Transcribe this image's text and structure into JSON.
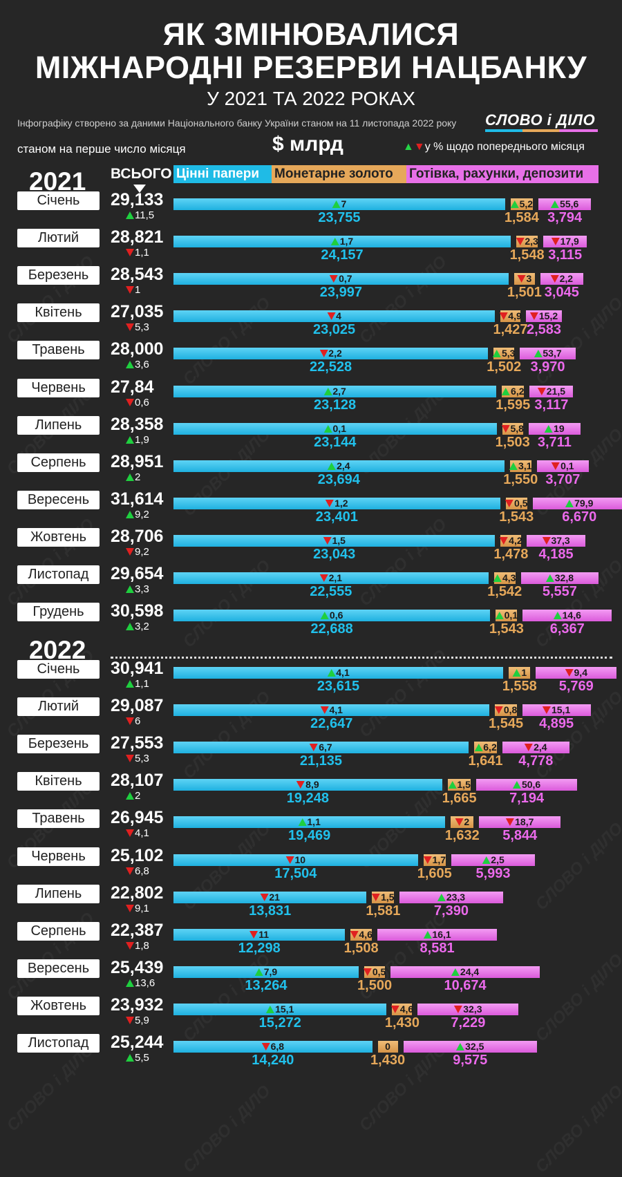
{
  "header": {
    "title_line1": "ЯК ЗМІНЮВАЛИСЯ",
    "title_line2": "МІЖНАРОДНІ РЕЗЕРВИ НАЦБАНКУ",
    "subtitle": "У 2021 ТА 2022 РОКАХ",
    "source_note": "Інфографіку створено за даними Національного банку України станом на 11 листопада 2022 року",
    "logo_text": "СЛОВО і ДІЛО",
    "as_of_note": "станом на перше число місяця",
    "unit": "$ млрд",
    "change_legend": "у % щодо попереднього місяця",
    "total_header": "ВСЬОГО"
  },
  "colors": {
    "background": "#262626",
    "securities": "#1fbbe6",
    "gold": "#e6a85a",
    "cash": "#e870e8",
    "up": "#1fcf3f",
    "down": "#e02020"
  },
  "chart_data": {
    "type": "bar",
    "orientation": "horizontal",
    "stacked": false,
    "series": [
      {
        "name": "Цінні папери"
      },
      {
        "name": "Монетарне золото"
      },
      {
        "name": "Готівка, рахунки, депозити"
      }
    ],
    "groups": [
      {
        "year": "2021",
        "rows": [
          {
            "month": "Січень",
            "total": "29,133",
            "total_dir": "up",
            "total_chg": "11,5",
            "sec": 23.755,
            "sec_label": "23,755",
            "sec_dir": "up",
            "sec_chg": "7",
            "gold": 1.584,
            "gold_label": "1,584",
            "gold_dir": "up",
            "gold_chg": "5,2",
            "cash": 3.794,
            "cash_label": "3,794",
            "cash_dir": "up",
            "cash_chg": "55,6"
          },
          {
            "month": "Лютий",
            "total": "28,821",
            "total_dir": "down",
            "total_chg": "1,1",
            "sec": 24.157,
            "sec_label": "24,157",
            "sec_dir": "up",
            "sec_chg": "1,7",
            "gold": 1.548,
            "gold_label": "1,548",
            "gold_dir": "down",
            "gold_chg": "2,3",
            "cash": 3.115,
            "cash_label": "3,115",
            "cash_dir": "down",
            "cash_chg": "17,9"
          },
          {
            "month": "Березень",
            "total": "28,543",
            "total_dir": "down",
            "total_chg": "1",
            "sec": 23.997,
            "sec_label": "23,997",
            "sec_dir": "down",
            "sec_chg": "0,7",
            "gold": 1.501,
            "gold_label": "1,501",
            "gold_dir": "down",
            "gold_chg": "3",
            "cash": 3.045,
            "cash_label": "3,045",
            "cash_dir": "down",
            "cash_chg": "2,2"
          },
          {
            "month": "Квітень",
            "total": "27,035",
            "total_dir": "down",
            "total_chg": "5,3",
            "sec": 23.025,
            "sec_label": "23,025",
            "sec_dir": "down",
            "sec_chg": "4",
            "gold": 1.427,
            "gold_label": "1,427",
            "gold_dir": "down",
            "gold_chg": "4,9",
            "cash": 2.583,
            "cash_label": "2,583",
            "cash_dir": "down",
            "cash_chg": "15,2"
          },
          {
            "month": "Травень",
            "total": "28,000",
            "total_dir": "up",
            "total_chg": "3,6",
            "sec": 22.528,
            "sec_label": "22,528",
            "sec_dir": "down",
            "sec_chg": "2,2",
            "gold": 1.502,
            "gold_label": "1,502",
            "gold_dir": "up",
            "gold_chg": "5,3",
            "cash": 3.97,
            "cash_label": "3,970",
            "cash_dir": "up",
            "cash_chg": "53,7"
          },
          {
            "month": "Червень",
            "total": "27,84",
            "total_dir": "down",
            "total_chg": "0,6",
            "sec": 23.128,
            "sec_label": "23,128",
            "sec_dir": "up",
            "sec_chg": "2,7",
            "gold": 1.595,
            "gold_label": "1,595",
            "gold_dir": "up",
            "gold_chg": "6,2",
            "cash": 3.117,
            "cash_label": "3,117",
            "cash_dir": "down",
            "cash_chg": "21,5"
          },
          {
            "month": "Липень",
            "total": "28,358",
            "total_dir": "up",
            "total_chg": "1,9",
            "sec": 23.144,
            "sec_label": "23,144",
            "sec_dir": "up",
            "sec_chg": "0,1",
            "gold": 1.503,
            "gold_label": "1,503",
            "gold_dir": "down",
            "gold_chg": "5,8",
            "cash": 3.711,
            "cash_label": "3,711",
            "cash_dir": "up",
            "cash_chg": "19"
          },
          {
            "month": "Серпень",
            "total": "28,951",
            "total_dir": "up",
            "total_chg": "2",
            "sec": 23.694,
            "sec_label": "23,694",
            "sec_dir": "up",
            "sec_chg": "2,4",
            "gold": 1.55,
            "gold_label": "1,550",
            "gold_dir": "up",
            "gold_chg": "3,1",
            "cash": 3.707,
            "cash_label": "3,707",
            "cash_dir": "down",
            "cash_chg": "0,1"
          },
          {
            "month": "Вересень",
            "total": "31,614",
            "total_dir": "up",
            "total_chg": "9,2",
            "sec": 23.401,
            "sec_label": "23,401",
            "sec_dir": "down",
            "sec_chg": "1,2",
            "gold": 1.543,
            "gold_label": "1,543",
            "gold_dir": "down",
            "gold_chg": "0,5",
            "cash": 6.67,
            "cash_label": "6,670",
            "cash_dir": "up",
            "cash_chg": "79,9"
          },
          {
            "month": "Жовтень",
            "total": "28,706",
            "total_dir": "down",
            "total_chg": "9,2",
            "sec": 23.043,
            "sec_label": "23,043",
            "sec_dir": "down",
            "sec_chg": "1,5",
            "gold": 1.478,
            "gold_label": "1,478",
            "gold_dir": "down",
            "gold_chg": "4,2",
            "cash": 4.185,
            "cash_label": "4,185",
            "cash_dir": "down",
            "cash_chg": "37,3"
          },
          {
            "month": "Листопад",
            "total": "29,654",
            "total_dir": "up",
            "total_chg": "3,3",
            "sec": 22.555,
            "sec_label": "22,555",
            "sec_dir": "down",
            "sec_chg": "2,1",
            "gold": 1.542,
            "gold_label": "1,542",
            "gold_dir": "up",
            "gold_chg": "4,3",
            "cash": 5.557,
            "cash_label": "5,557",
            "cash_dir": "up",
            "cash_chg": "32,8"
          },
          {
            "month": "Грудень",
            "total": "30,598",
            "total_dir": "up",
            "total_chg": "3,2",
            "sec": 22.688,
            "sec_label": "22,688",
            "sec_dir": "up",
            "sec_chg": "0,6",
            "gold": 1.543,
            "gold_label": "1,543",
            "gold_dir": "up",
            "gold_chg": "0,1",
            "cash": 6.367,
            "cash_label": "6,367",
            "cash_dir": "up",
            "cash_chg": "14,6"
          }
        ]
      },
      {
        "year": "2022",
        "rows": [
          {
            "month": "Січень",
            "total": "30,941",
            "total_dir": "up",
            "total_chg": "1,1",
            "sec": 23.615,
            "sec_label": "23,615",
            "sec_dir": "up",
            "sec_chg": "4,1",
            "gold": 1.558,
            "gold_label": "1,558",
            "gold_dir": "up",
            "gold_chg": "1",
            "cash": 5.769,
            "cash_label": "5,769",
            "cash_dir": "down",
            "cash_chg": "9,4"
          },
          {
            "month": "Лютий",
            "total": "29,087",
            "total_dir": "down",
            "total_chg": "6",
            "sec": 22.647,
            "sec_label": "22,647",
            "sec_dir": "down",
            "sec_chg": "4,1",
            "gold": 1.545,
            "gold_label": "1,545",
            "gold_dir": "down",
            "gold_chg": "0,8",
            "cash": 4.895,
            "cash_label": "4,895",
            "cash_dir": "down",
            "cash_chg": "15,1"
          },
          {
            "month": "Березень",
            "total": "27,553",
            "total_dir": "down",
            "total_chg": "5,3",
            "sec": 21.135,
            "sec_label": "21,135",
            "sec_dir": "down",
            "sec_chg": "6,7",
            "gold": 1.641,
            "gold_label": "1,641",
            "gold_dir": "up",
            "gold_chg": "6,2",
            "cash": 4.778,
            "cash_label": "4,778",
            "cash_dir": "down",
            "cash_chg": "2,4"
          },
          {
            "month": "Квітень",
            "total": "28,107",
            "total_dir": "up",
            "total_chg": "2",
            "sec": 19.248,
            "sec_label": "19,248",
            "sec_dir": "down",
            "sec_chg": "8,9",
            "gold": 1.665,
            "gold_label": "1,665",
            "gold_dir": "up",
            "gold_chg": "1,5",
            "cash": 7.194,
            "cash_label": "7,194",
            "cash_dir": "up",
            "cash_chg": "50,6"
          },
          {
            "month": "Травень",
            "total": "26,945",
            "total_dir": "down",
            "total_chg": "4,1",
            "sec": 19.469,
            "sec_label": "19,469",
            "sec_dir": "up",
            "sec_chg": "1,1",
            "gold": 1.632,
            "gold_label": "1,632",
            "gold_dir": "down",
            "gold_chg": "2",
            "cash": 5.844,
            "cash_label": "5,844",
            "cash_dir": "down",
            "cash_chg": "18,7"
          },
          {
            "month": "Червень",
            "total": "25,102",
            "total_dir": "down",
            "total_chg": "6,8",
            "sec": 17.504,
            "sec_label": "17,504",
            "sec_dir": "down",
            "sec_chg": "10",
            "gold": 1.605,
            "gold_label": "1,605",
            "gold_dir": "down",
            "gold_chg": "1,7",
            "cash": 5.993,
            "cash_label": "5,993",
            "cash_dir": "up",
            "cash_chg": "2,5"
          },
          {
            "month": "Липень",
            "total": "22,802",
            "total_dir": "down",
            "total_chg": "9,1",
            "sec": 13.831,
            "sec_label": "13,831",
            "sec_dir": "down",
            "sec_chg": "21",
            "gold": 1.581,
            "gold_label": "1,581",
            "gold_dir": "down",
            "gold_chg": "1,5",
            "cash": 7.39,
            "cash_label": "7,390",
            "cash_dir": "up",
            "cash_chg": "23,3"
          },
          {
            "month": "Серпень",
            "total": "22,387",
            "total_dir": "down",
            "total_chg": "1,8",
            "sec": 12.298,
            "sec_label": "12,298",
            "sec_dir": "down",
            "sec_chg": "11",
            "gold": 1.508,
            "gold_label": "1,508",
            "gold_dir": "down",
            "gold_chg": "4,6",
            "cash": 8.581,
            "cash_label": "8,581",
            "cash_dir": "up",
            "cash_chg": "16,1"
          },
          {
            "month": "Вересень",
            "total": "25,439",
            "total_dir": "up",
            "total_chg": "13,6",
            "sec": 13.264,
            "sec_label": "13,264",
            "sec_dir": "up",
            "sec_chg": "7,9",
            "gold": 1.5,
            "gold_label": "1,500",
            "gold_dir": "down",
            "gold_chg": "0,5",
            "cash": 10.674,
            "cash_label": "10,674",
            "cash_dir": "up",
            "cash_chg": "24,4"
          },
          {
            "month": "Жовтень",
            "total": "23,932",
            "total_dir": "down",
            "total_chg": "5,9",
            "sec": 15.272,
            "sec_label": "15,272",
            "sec_dir": "up",
            "sec_chg": "15,1",
            "gold": 1.43,
            "gold_label": "1,430",
            "gold_dir": "down",
            "gold_chg": "4,6",
            "cash": 7.229,
            "cash_label": "7,229",
            "cash_dir": "down",
            "cash_chg": "32,3"
          },
          {
            "month": "Листопад",
            "total": "25,244",
            "total_dir": "up",
            "total_chg": "5,5",
            "sec": 14.24,
            "sec_label": "14,240",
            "sec_dir": "down",
            "sec_chg": "6,8",
            "gold": 1.43,
            "gold_label": "1,430",
            "gold_dir": "none",
            "gold_chg": "0",
            "cash": 9.575,
            "cash_label": "9,575",
            "cash_dir": "up",
            "cash_chg": "32,5"
          }
        ]
      }
    ]
  }
}
